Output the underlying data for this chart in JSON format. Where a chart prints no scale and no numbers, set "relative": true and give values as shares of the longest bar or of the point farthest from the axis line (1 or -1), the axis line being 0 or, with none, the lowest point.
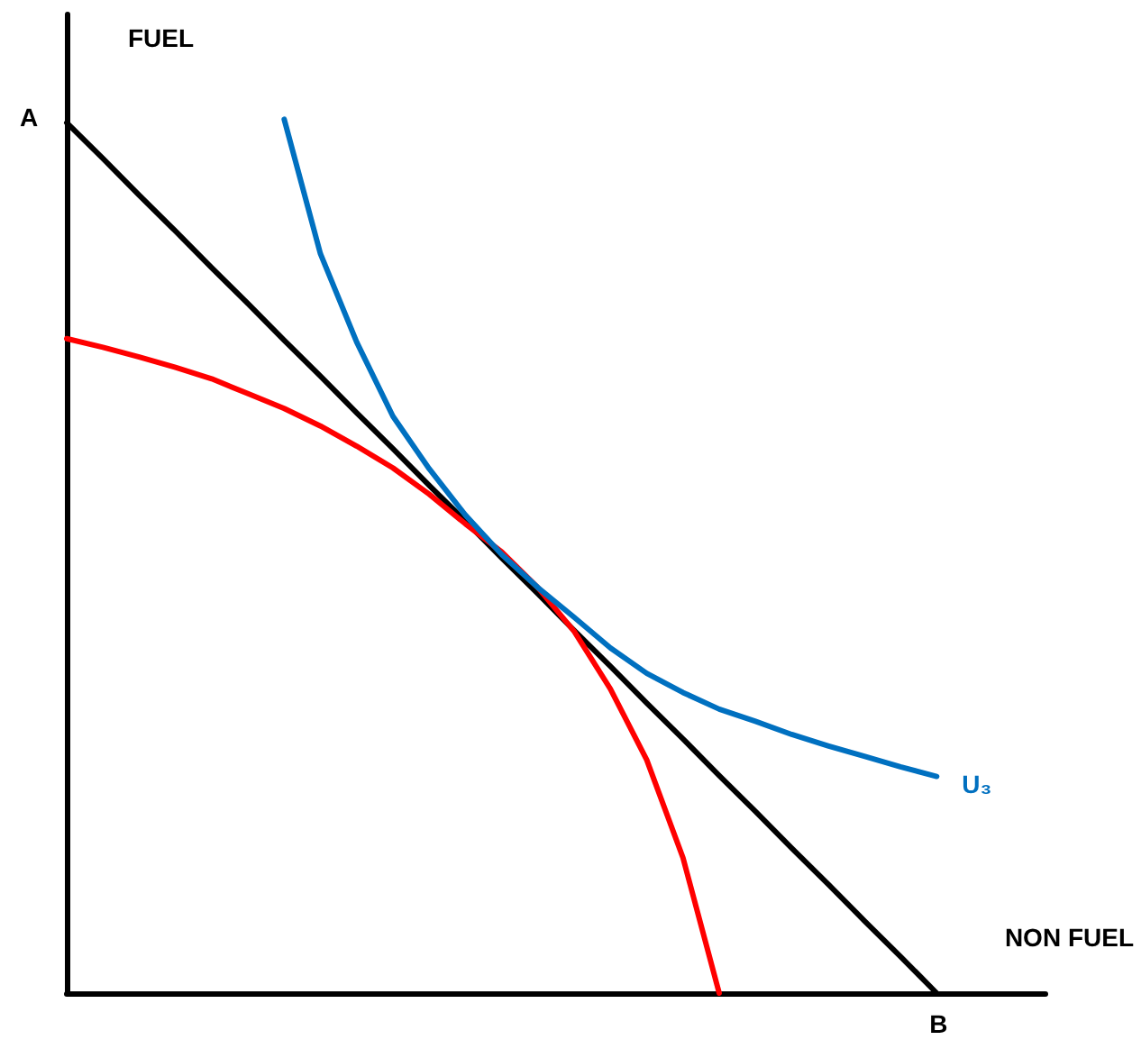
{
  "chart_data": {
    "type": "line",
    "relative": true,
    "xlabel": "NON FUEL",
    "ylabel": "FUEL",
    "grid": false,
    "legend": false,
    "marker": "none",
    "line_style": "solid",
    "annotations": [
      "A",
      "B"
    ],
    "categories": [
      null,
      null,
      null,
      null,
      null,
      null,
      null,
      null,
      null,
      null,
      null,
      null,
      null,
      null,
      null,
      null,
      null,
      null,
      null,
      null,
      null,
      null,
      null,
      null,
      null,
      null,
      null,
      null
    ],
    "series": [
      {
        "color": "#000000",
        "values": [
          0.996,
          0.955,
          0.913,
          0.872,
          0.83,
          0.789,
          0.747,
          0.706,
          0.664,
          0.623,
          0.581,
          0.54,
          0.498,
          0.457,
          0.415,
          0.374,
          0.332,
          0.291,
          0.249,
          0.208,
          0.166,
          0.125,
          0.083,
          0.042,
          0,
          null,
          null,
          null
        ]
      },
      {
        "color": "#ff0000",
        "values": [
          0.749,
          0.739,
          0.728,
          0.716,
          0.703,
          0.686,
          0.669,
          0.649,
          0.626,
          0.601,
          0.571,
          0.537,
          0.505,
          0.464,
          0.414,
          0.348,
          0.267,
          0.155,
          0,
          null,
          null,
          null,
          null,
          null,
          null,
          null,
          null,
          null
        ]
      },
      {
        "name": "U₃",
        "color": "#0070c0",
        "values": [
          null,
          null,
          null,
          null,
          null,
          null,
          1,
          0.846,
          0.745,
          0.66,
          0.6,
          0.547,
          0.502,
          0.464,
          0.43,
          0.395,
          0.366,
          0.344,
          0.325,
          0.311,
          0.296,
          0.283,
          0.271,
          0.259,
          0.248,
          null,
          null,
          null
        ]
      }
    ]
  }
}
